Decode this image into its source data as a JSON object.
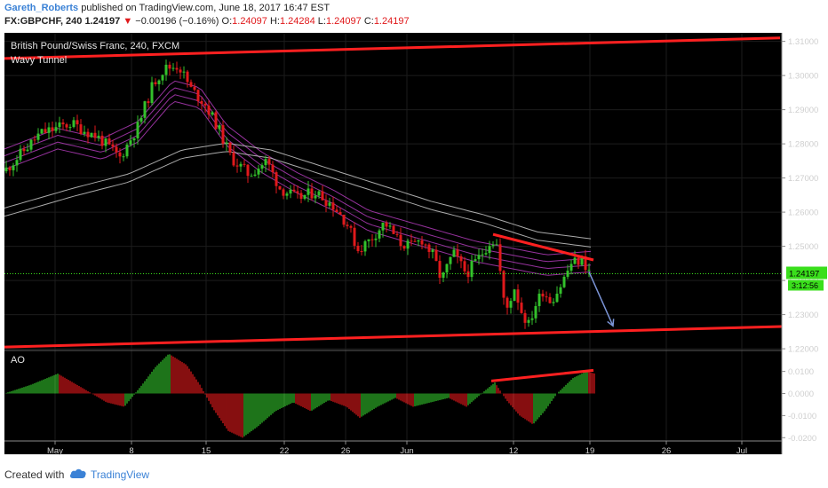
{
  "header": {
    "author": "Gareth_Roberts",
    "published_text": "published on TradingView.com, June 18, 2017 16:47 EST",
    "symbol": "FX:GBPCHF, 240",
    "last_price": "1.24197",
    "change": "−0.00196 (−0.16%)",
    "o_label": "O:",
    "o_value": "1.24097",
    "h_label": "H:",
    "h_value": "1.24284",
    "l_label": "L:",
    "l_value": "1.24097",
    "c_label": "C:",
    "c_value": "1.24197"
  },
  "chart_data": {
    "type": "candlestick",
    "title": "British Pound/Swiss Franc, 240, FXCM",
    "indicator": "Wavy Tunnel",
    "x_tick_labels": [
      "May",
      "8",
      "15",
      "22",
      "26",
      "Jun",
      "12",
      "19",
      "26",
      "Jul"
    ],
    "y_ticks": [
      1.31,
      1.3,
      1.29,
      1.28,
      1.27,
      1.26,
      1.25,
      1.24,
      1.23,
      1.22
    ],
    "y_tick_labels": [
      "1.31000",
      "1.30000",
      "1.29000",
      "1.28000",
      "1.27000",
      "1.26000",
      "1.25000",
      "1.24000",
      "1.23000",
      "1.22000"
    ],
    "ylim": [
      1.2195,
      1.3125
    ],
    "last_price": 1.24197,
    "last_price_label": "1.24197",
    "countdown_label": "3:12:56",
    "price_path": [
      [
        0,
        1.272
      ],
      [
        40,
        1.283
      ],
      [
        75,
        1.286
      ],
      [
        105,
        1.282
      ],
      [
        130,
        1.276
      ],
      [
        150,
        1.285
      ],
      [
        168,
        1.298
      ],
      [
        180,
        1.302
      ],
      [
        196,
        1.303
      ],
      [
        210,
        1.296
      ],
      [
        225,
        1.292
      ],
      [
        240,
        1.285
      ],
      [
        255,
        1.276
      ],
      [
        275,
        1.271
      ],
      [
        295,
        1.275
      ],
      [
        310,
        1.267
      ],
      [
        330,
        1.264
      ],
      [
        350,
        1.266
      ],
      [
        370,
        1.262
      ],
      [
        385,
        1.257
      ],
      [
        398,
        1.249
      ],
      [
        412,
        1.252
      ],
      [
        428,
        1.257
      ],
      [
        445,
        1.251
      ],
      [
        458,
        1.25
      ],
      [
        470,
        1.252
      ],
      [
        483,
        1.247
      ],
      [
        492,
        1.24
      ],
      [
        505,
        1.248
      ],
      [
        520,
        1.242
      ],
      [
        535,
        1.247
      ],
      [
        548,
        1.252
      ],
      [
        556,
        1.25
      ],
      [
        560,
        1.235
      ],
      [
        566,
        1.232
      ],
      [
        574,
        1.238
      ],
      [
        582,
        1.231
      ],
      [
        590,
        1.227
      ],
      [
        598,
        1.233
      ],
      [
        606,
        1.237
      ],
      [
        615,
        1.234
      ],
      [
        625,
        1.238
      ],
      [
        638,
        1.245
      ],
      [
        650,
        1.246
      ],
      [
        660,
        1.242
      ]
    ],
    "tunnel_fast": [
      [
        0,
        1.276
      ],
      [
        60,
        1.282
      ],
      [
        110,
        1.279
      ],
      [
        150,
        1.284
      ],
      [
        190,
        1.296
      ],
      [
        220,
        1.294
      ],
      [
        250,
        1.283
      ],
      [
        290,
        1.275
      ],
      [
        330,
        1.269
      ],
      [
        370,
        1.264
      ],
      [
        410,
        1.258
      ],
      [
        450,
        1.255
      ],
      [
        490,
        1.252
      ],
      [
        530,
        1.249
      ],
      [
        570,
        1.247
      ],
      [
        610,
        1.245
      ],
      [
        660,
        1.246
      ]
    ],
    "tunnel_slow": [
      [
        0,
        1.26
      ],
      [
        80,
        1.266
      ],
      [
        140,
        1.27
      ],
      [
        200,
        1.277
      ],
      [
        250,
        1.279
      ],
      [
        300,
        1.277
      ],
      [
        360,
        1.272
      ],
      [
        420,
        1.267
      ],
      [
        480,
        1.262
      ],
      [
        540,
        1.258
      ],
      [
        600,
        1.253
      ],
      [
        660,
        1.251
      ]
    ],
    "trendlines": [
      {
        "from": [
          5,
          1.305
        ],
        "to": [
          878,
          1.311
        ]
      },
      {
        "from": [
          5,
          1.2205
        ],
        "to": [
          880,
          1.2265
        ]
      },
      {
        "from": [
          555,
          1.2535
        ],
        "to": [
          668,
          1.246
        ]
      }
    ],
    "projection_arrow": {
      "from": [
        663,
        1.2425
      ],
      "to": [
        690,
        1.2267
      ]
    },
    "oscillator": {
      "name": "AO",
      "y_ticks": [
        0.01,
        0.0,
        -0.01,
        -0.02
      ],
      "y_tick_labels": [
        "0.0100",
        "0.0000",
        "-0.0100",
        "-0.0200"
      ],
      "ylim": [
        -0.0215,
        0.0195
      ],
      "path": [
        [
          0,
          0.0
        ],
        [
          30,
          0.004
        ],
        [
          60,
          0.009
        ],
        [
          90,
          0.002
        ],
        [
          115,
          -0.004
        ],
        [
          135,
          -0.006
        ],
        [
          155,
          0.004
        ],
        [
          170,
          0.012
        ],
        [
          185,
          0.018
        ],
        [
          205,
          0.013
        ],
        [
          220,
          0.004
        ],
        [
          235,
          -0.007
        ],
        [
          252,
          -0.017
        ],
        [
          268,
          -0.02
        ],
        [
          285,
          -0.015
        ],
        [
          305,
          -0.008
        ],
        [
          325,
          -0.004
        ],
        [
          345,
          -0.008
        ],
        [
          365,
          -0.003
        ],
        [
          385,
          -0.006
        ],
        [
          400,
          -0.011
        ],
        [
          420,
          -0.006
        ],
        [
          440,
          -0.002
        ],
        [
          460,
          -0.006
        ],
        [
          480,
          -0.004
        ],
        [
          500,
          -0.002
        ],
        [
          520,
          -0.006
        ],
        [
          540,
          0.001
        ],
        [
          552,
          0.005
        ],
        [
          565,
          -0.003
        ],
        [
          580,
          -0.01
        ],
        [
          595,
          -0.014
        ],
        [
          608,
          -0.008
        ],
        [
          622,
          0.0
        ],
        [
          640,
          0.007
        ],
        [
          655,
          0.01
        ],
        [
          665,
          0.009
        ]
      ],
      "trendline": {
        "from": [
          553,
          0.0057
        ],
        "to": [
          668,
          0.0105
        ]
      }
    }
  },
  "footer": {
    "created_with": "Created with",
    "brand": "TradingView"
  },
  "colors": {
    "background": "#000000",
    "up_candle": "#33c12b",
    "down_candle": "#e0191b",
    "trendline": "#ff2020",
    "tunnel_fast": "#b03bb8",
    "tunnel_slow": "#c8c8c8",
    "last_price": "#3adf1c",
    "axis_text": "#cfcfcf",
    "author": "#3b82d6"
  }
}
